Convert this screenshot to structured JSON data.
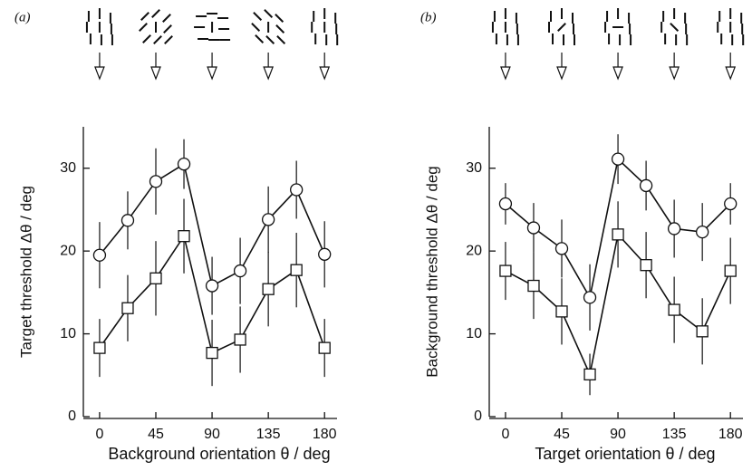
{
  "chart_data": [
    {
      "type": "line",
      "panel_label": "(a)",
      "xlabel": "Background orientation θ / deg",
      "ylabel": "Target threshold Δθ / deg",
      "x": [
        0,
        22.5,
        45,
        67.5,
        90,
        112.5,
        135,
        157.5,
        180
      ],
      "xlim": [
        -13,
        190
      ],
      "ylim": [
        0,
        35
      ],
      "xticks": [
        0,
        45,
        90,
        135,
        180
      ],
      "yticks": [
        0,
        10,
        20,
        30
      ],
      "series": [
        {
          "marker": "circle",
          "color": "#111111",
          "values": [
            19.5,
            23.7,
            28.4,
            30.5,
            15.8,
            17.6,
            23.8,
            27.4,
            19.6
          ],
          "errors": [
            4,
            3.5,
            4,
            3,
            3.5,
            4,
            4,
            3.5,
            4
          ]
        },
        {
          "marker": "square",
          "color": "#111111",
          "values": [
            8.3,
            13.1,
            16.7,
            21.8,
            7.7,
            9.3,
            15.4,
            17.7,
            8.3
          ],
          "errors": [
            3.5,
            4,
            4.5,
            4.5,
            4,
            4,
            4.5,
            4.5,
            3.5
          ]
        }
      ]
    },
    {
      "type": "line",
      "panel_label": "(b)",
      "xlabel": "Target orientation θ / deg",
      "ylabel": "Background threshold Δθ / deg",
      "x": [
        0,
        22.5,
        45,
        67.5,
        90,
        112.5,
        135,
        157.5,
        180
      ],
      "xlim": [
        -13,
        190
      ],
      "ylim": [
        0,
        35
      ],
      "xticks": [
        0,
        45,
        90,
        135,
        180
      ],
      "yticks": [
        0,
        10,
        20,
        30
      ],
      "series": [
        {
          "marker": "circle",
          "color": "#111111",
          "values": [
            25.7,
            22.8,
            20.3,
            14.4,
            31.1,
            27.9,
            22.7,
            22.3,
            25.7
          ],
          "errors": [
            2.5,
            3,
            3.5,
            4,
            3,
            3,
            3.5,
            3.5,
            2.5
          ]
        },
        {
          "marker": "square",
          "color": "#111111",
          "values": [
            17.6,
            15.8,
            12.7,
            5.1,
            22.0,
            18.3,
            12.9,
            10.3,
            17.6
          ],
          "errors": [
            3.5,
            4,
            4,
            2.5,
            4,
            4,
            4,
            4,
            4
          ]
        }
      ]
    }
  ]
}
